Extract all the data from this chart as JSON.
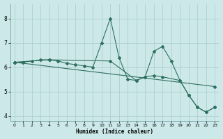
{
  "xlabel": "Humidex (Indice chaleur)",
  "bg_color": "#cce8e8",
  "grid_color": "#aacaca",
  "line_color": "#2e7060",
  "xlim": [
    -0.5,
    23.5
  ],
  "ylim": [
    3.8,
    8.6
  ],
  "yticks": [
    4,
    5,
    6,
    7,
    8
  ],
  "xticks": [
    0,
    1,
    2,
    3,
    4,
    5,
    6,
    7,
    8,
    9,
    10,
    11,
    12,
    13,
    14,
    15,
    16,
    17,
    18,
    19,
    20,
    21,
    22,
    23
  ],
  "series1_x": [
    0,
    1,
    2,
    3,
    4,
    5,
    6,
    7,
    8,
    9,
    10,
    11,
    12,
    13,
    14,
    15,
    16,
    17,
    18,
    19,
    20,
    21,
    22,
    23
  ],
  "series1_y": [
    6.2,
    6.2,
    6.25,
    6.3,
    6.3,
    6.25,
    6.15,
    6.1,
    6.05,
    6.0,
    7.0,
    8.0,
    6.4,
    5.5,
    5.45,
    5.6,
    6.65,
    6.85,
    6.25,
    5.45,
    4.85,
    4.35,
    4.15,
    4.35
  ],
  "series2_x": [
    0,
    23
  ],
  "series2_y": [
    6.2,
    5.2
  ],
  "series3_x": [
    0,
    4,
    11,
    14,
    15,
    16,
    17,
    19,
    20,
    21,
    22,
    23
  ],
  "series3_y": [
    6.2,
    6.3,
    6.25,
    5.45,
    5.6,
    5.65,
    5.6,
    5.45,
    4.85,
    4.35,
    4.15,
    4.35
  ]
}
